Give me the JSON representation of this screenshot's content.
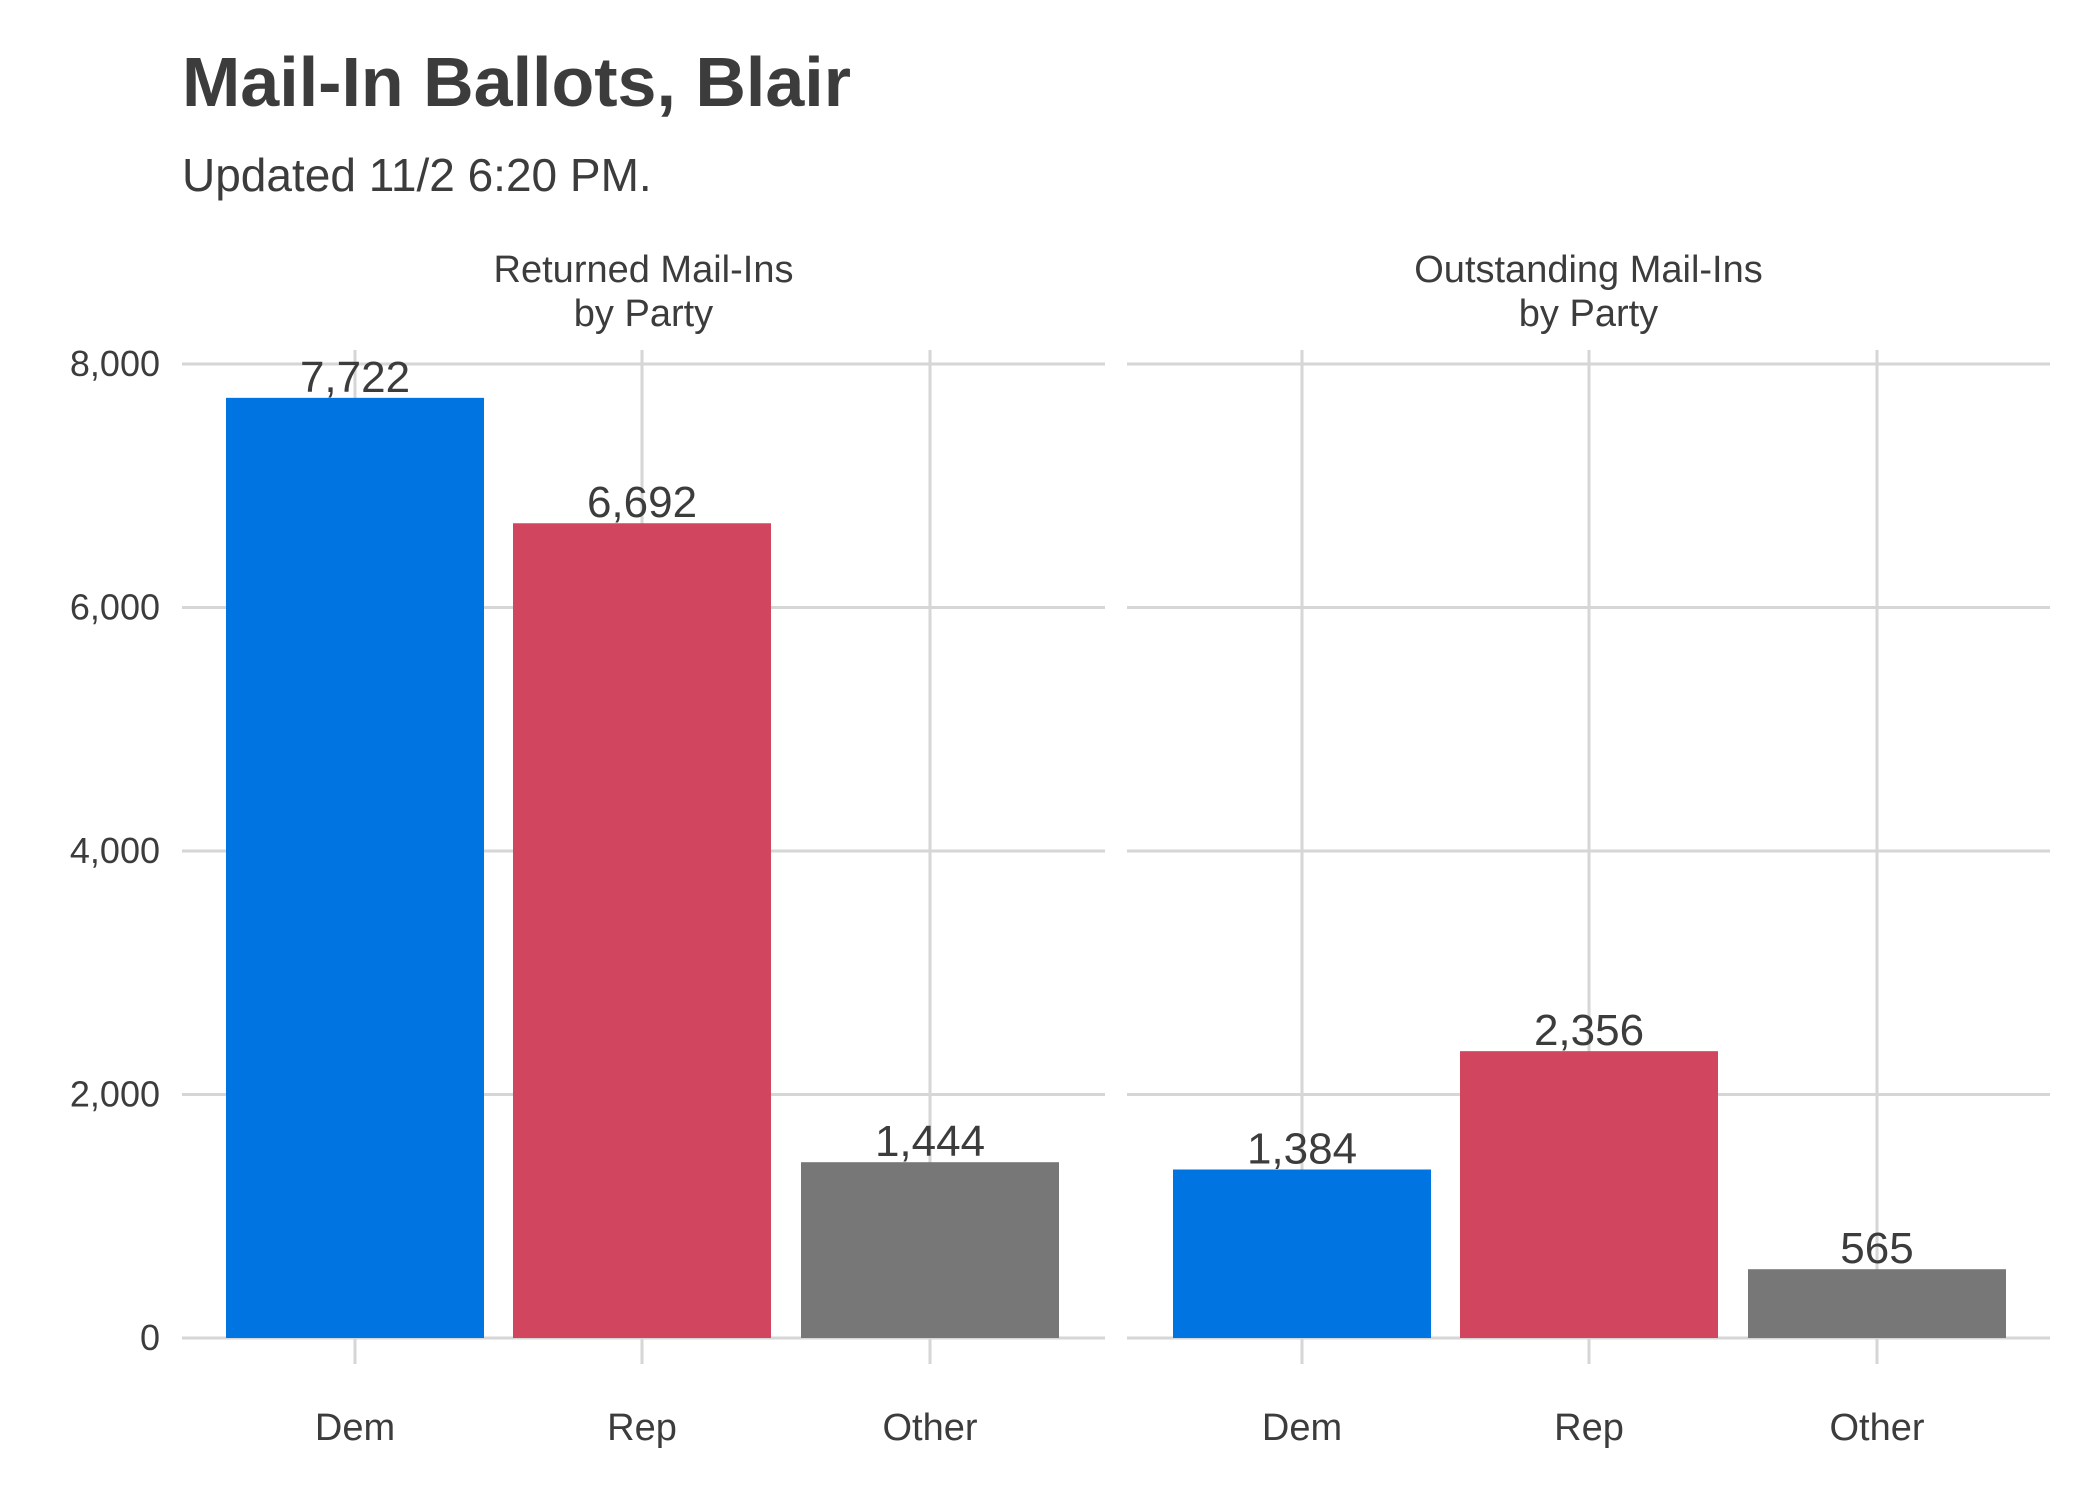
{
  "title": "Mail-In Ballots, Blair",
  "subtitle": "Updated 11/2 6:20 PM.",
  "chart_data": {
    "type": "bar",
    "faceted": true,
    "ylim": [
      0,
      8000
    ],
    "y_ticks": [
      0,
      2000,
      4000,
      6000,
      8000
    ],
    "y_tick_labels": [
      "0",
      "2,000",
      "4,000",
      "6,000",
      "8,000"
    ],
    "grid": true,
    "categories": [
      "Dem",
      "Rep",
      "Other"
    ],
    "colors": {
      "Dem": "#0074e0",
      "Rep": "#d1455e",
      "Other": "#777777"
    },
    "panels": [
      {
        "title_lines": [
          "Returned Mail-Ins",
          "by Party"
        ],
        "values": [
          7722,
          6692,
          1444
        ],
        "value_labels": [
          "7,722",
          "6,692",
          "1,444"
        ]
      },
      {
        "title_lines": [
          "Outstanding Mail-Ins",
          "by Party"
        ],
        "values": [
          1384,
          2356,
          565
        ],
        "value_labels": [
          "1,384",
          "2,356",
          "565"
        ]
      }
    ]
  }
}
